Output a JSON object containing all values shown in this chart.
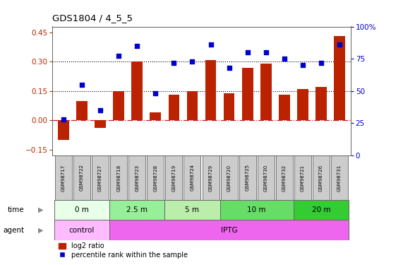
{
  "title": "GDS1804 / 4_5_5",
  "samples": [
    "GSM98717",
    "GSM98722",
    "GSM98727",
    "GSM98718",
    "GSM98723",
    "GSM98728",
    "GSM98719",
    "GSM98724",
    "GSM98729",
    "GSM98720",
    "GSM98725",
    "GSM98730",
    "GSM98732",
    "GSM98721",
    "GSM98726",
    "GSM98731"
  ],
  "log2_ratio": [
    -0.1,
    0.1,
    -0.04,
    0.15,
    0.3,
    0.04,
    0.13,
    0.15,
    0.31,
    0.14,
    0.27,
    0.29,
    0.13,
    0.16,
    0.17,
    0.43
  ],
  "pct_rank": [
    28,
    55,
    35,
    77,
    85,
    48,
    72,
    73,
    86,
    68,
    80,
    80,
    75,
    70,
    72,
    86
  ],
  "bar_color": "#bb2200",
  "dot_color": "#0000cc",
  "ylim_left": [
    -0.18,
    0.48
  ],
  "ylim_right": [
    0,
    100
  ],
  "yticks_left": [
    -0.15,
    0.0,
    0.15,
    0.3,
    0.45
  ],
  "yticks_right": [
    0,
    25,
    50,
    75,
    100
  ],
  "hlines_dotted": [
    0.15,
    0.3
  ],
  "hline_dashdot": 0.0,
  "time_groups": [
    {
      "label": "0 m",
      "start": 0,
      "end": 3,
      "color": "#e8ffe8"
    },
    {
      "label": "2.5 m",
      "start": 3,
      "end": 6,
      "color": "#99ee99"
    },
    {
      "label": "5 m",
      "start": 6,
      "end": 9,
      "color": "#bbeeaa"
    },
    {
      "label": "10 m",
      "start": 9,
      "end": 13,
      "color": "#66dd66"
    },
    {
      "label": "20 m",
      "start": 13,
      "end": 16,
      "color": "#33cc33"
    }
  ],
  "agent_groups": [
    {
      "label": "control",
      "start": 0,
      "end": 3,
      "color": "#ffbbff"
    },
    {
      "label": "IPTG",
      "start": 3,
      "end": 16,
      "color": "#ee66ee"
    }
  ],
  "legend_bar_label": "log2 ratio",
  "legend_dot_label": "percentile rank within the sample",
  "zero_line_color": "#cc2222",
  "background_color": "#ffffff",
  "sample_box_color": "#cccccc",
  "border_color": "#666666"
}
